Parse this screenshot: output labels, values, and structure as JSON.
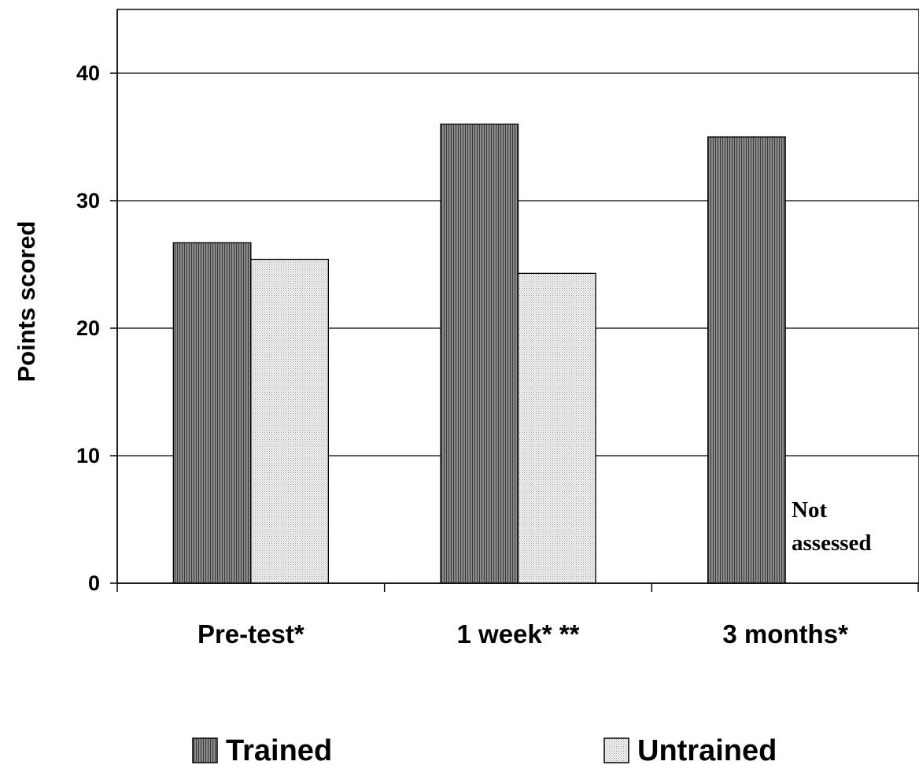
{
  "chart_data": {
    "type": "bar",
    "title": "",
    "xlabel": "",
    "ylabel": "Points scored",
    "ylim": [
      0,
      45
    ],
    "yticks": [
      0,
      10,
      20,
      30,
      40
    ],
    "grid": true,
    "categories": [
      "Pre-test*",
      "1 week* **",
      "3 months*"
    ],
    "series": [
      {
        "name": "Trained",
        "values": [
          26.7,
          36.0,
          35.0
        ],
        "color": "#7a7a7a"
      },
      {
        "name": "Untrained",
        "values": [
          25.4,
          24.3,
          null
        ],
        "color": "#d8d8d8"
      }
    ],
    "annotations": [
      {
        "text_line1": "Not",
        "text_line2": "assessed",
        "category": "3 months*"
      }
    ],
    "legend_position": "bottom"
  }
}
